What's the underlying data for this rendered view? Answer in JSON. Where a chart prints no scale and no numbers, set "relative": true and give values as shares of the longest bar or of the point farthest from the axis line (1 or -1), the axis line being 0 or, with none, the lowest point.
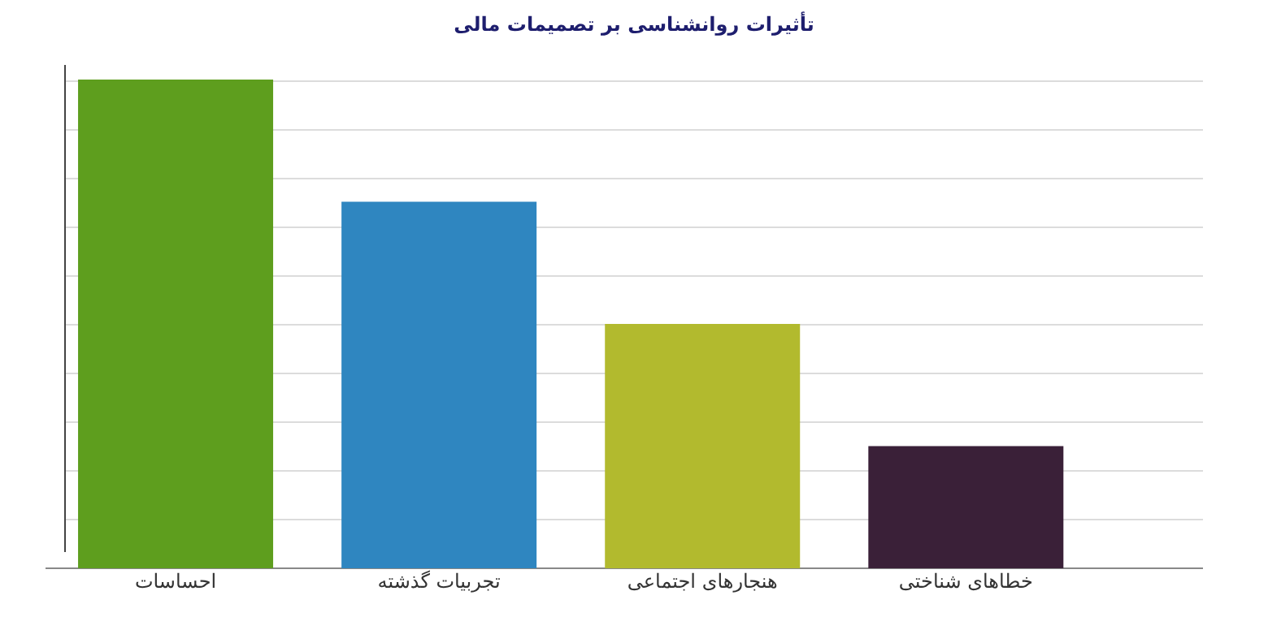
{
  "chart_data": {
    "type": "bar",
    "title": "تأثیرات روانشناسی بر تصمیمات مالی",
    "categories": [
      "احساسات",
      "تجربیات گذشته",
      "هنجارهای اجتماعی",
      "خطاهای شناختی"
    ],
    "values": [
      1,
      0.75,
      0.5,
      0.25
    ],
    "colors": [
      "#5e9e1e",
      "#2f86c0",
      "#b2ba2e",
      "#3a2038"
    ],
    "relative": true,
    "grid": "y"
  }
}
